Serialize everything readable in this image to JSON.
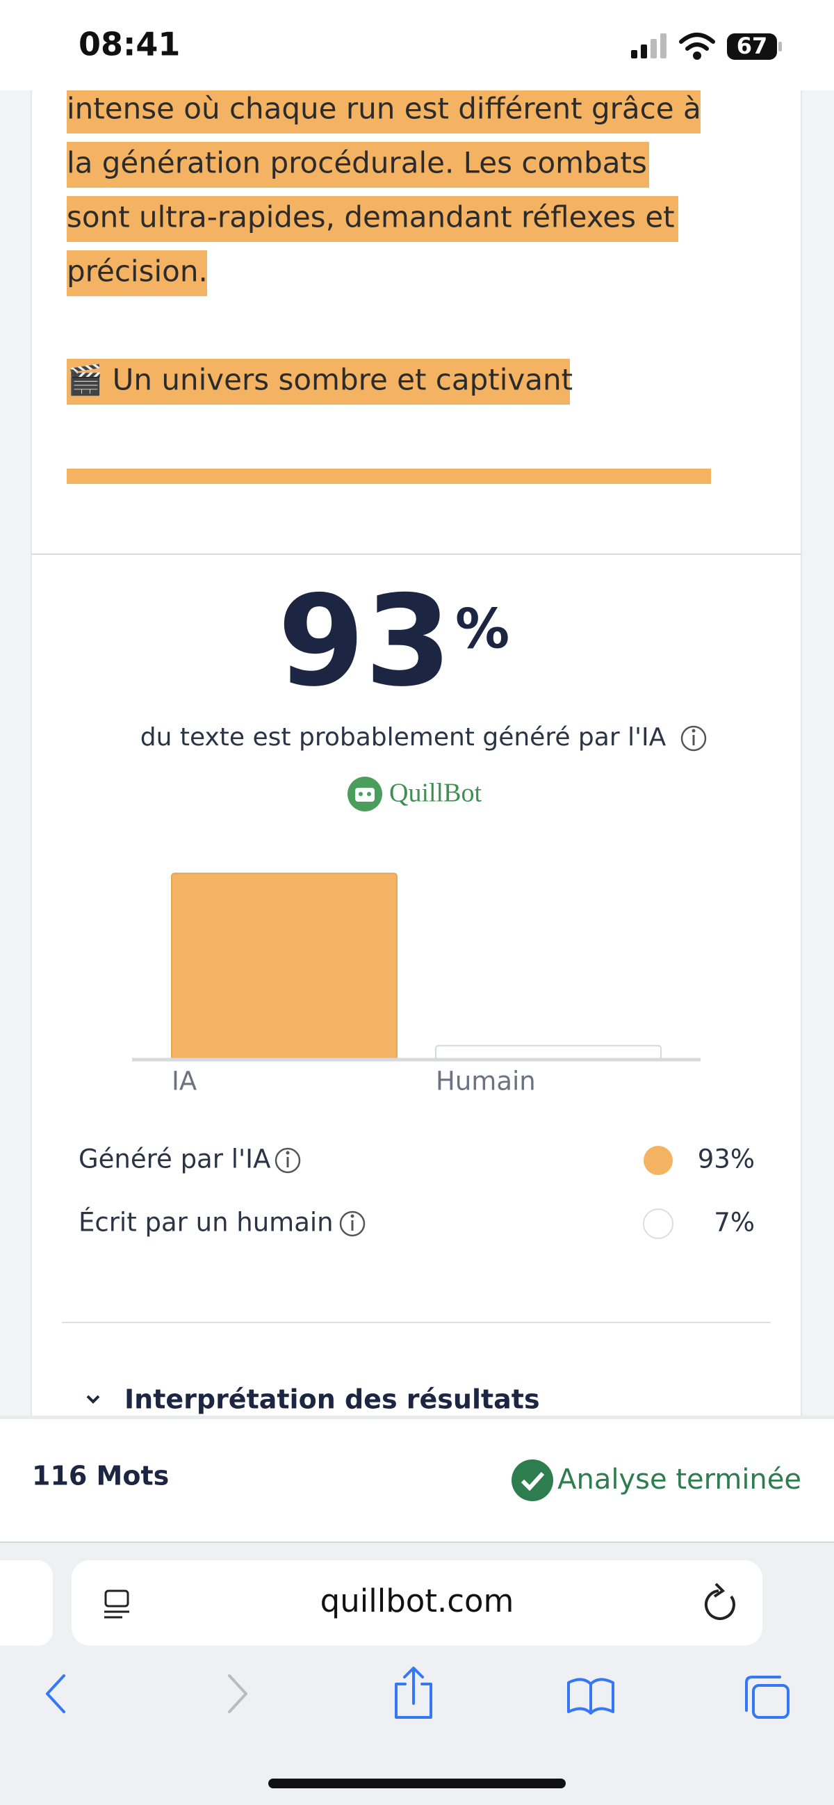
{
  "status_bar": {
    "time": "08:41",
    "battery": "67"
  },
  "document": {
    "lines": [
      "intense où chaque run est différent grâce à",
      "la génération procédurale. Les combats",
      "sont ultra-rapides, demandant réflexes et",
      "précision."
    ],
    "heading": "🎬 Un univers sombre et captivant"
  },
  "result": {
    "score": "93",
    "unit": "%",
    "caption": "du texte est probablement généré par l'IA",
    "brand": "QuillBot"
  },
  "result_chart": {
    "type": "bar",
    "categories": [
      "IA",
      "Humain"
    ],
    "values": [
      93,
      7
    ],
    "ylim": [
      0,
      100
    ],
    "colors": [
      "#f3b363",
      "#ffffff"
    ]
  },
  "legend": [
    {
      "label": "Généré par l'IA",
      "value": "93%"
    },
    {
      "label": "Écrit par un humain",
      "value": "7%"
    }
  ],
  "interpretation": "Interprétation des résultats",
  "footer": {
    "word_count": "116 Mots",
    "status": "Analyse terminée"
  },
  "browser": {
    "url": "quillbot.com"
  }
}
